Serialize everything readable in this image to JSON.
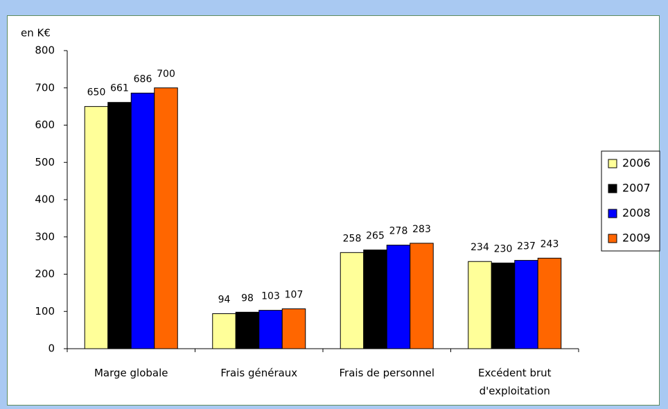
{
  "chart_data": {
    "type": "bar",
    "y_label": "en K€",
    "categories": [
      "Marge globale",
      "Frais généraux",
      "Frais de personnel",
      "Excédent brut d'exploitation"
    ],
    "series": [
      {
        "name": "2006",
        "color": "#ffff99",
        "values": [
          650,
          94,
          258,
          234
        ]
      },
      {
        "name": "2007",
        "color": "#000000",
        "values": [
          661,
          98,
          265,
          230
        ]
      },
      {
        "name": "2008",
        "color": "#0000ff",
        "values": [
          686,
          103,
          278,
          237
        ]
      },
      {
        "name": "2009",
        "color": "#ff6600",
        "values": [
          700,
          107,
          283,
          243
        ]
      }
    ],
    "ylim": [
      0,
      800
    ],
    "yticks": [
      0,
      100,
      200,
      300,
      400,
      500,
      600,
      700,
      800
    ],
    "legend": "right",
    "grid": false
  }
}
